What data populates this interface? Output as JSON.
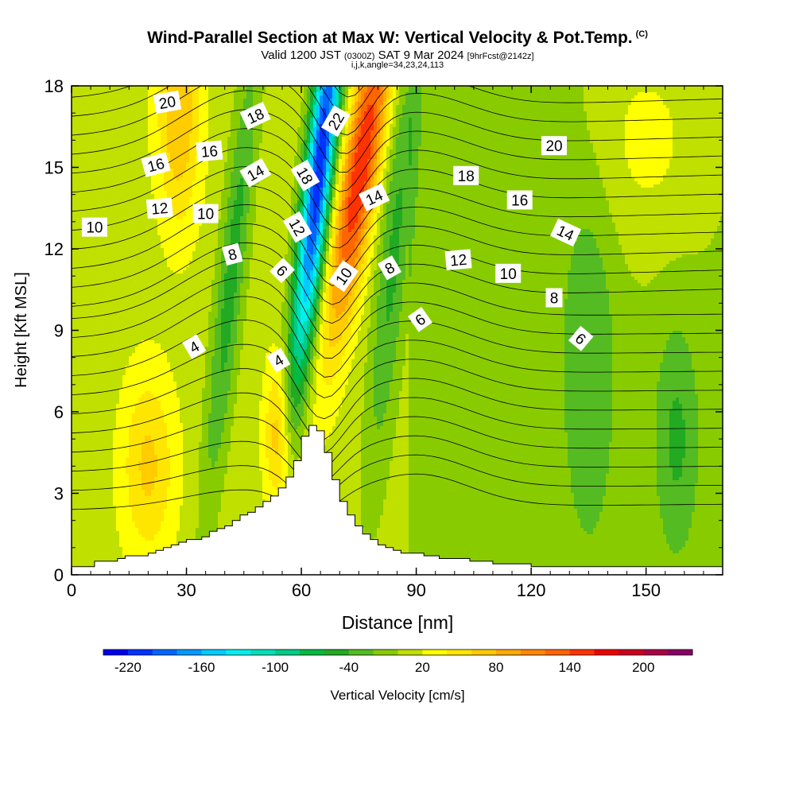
{
  "header": {
    "title": "Wind-Parallel Section at Max W: Vertical Velocity & Pot.Temp.",
    "copyright": "(C)",
    "valid_prefix": "Valid 1200 JST",
    "valid_utc": "(0300Z)",
    "valid_date": "SAT 9 Mar 2024",
    "forecast": "[9hrFcst@2142z]",
    "indices": "i,j,k,angle=34,23,24,113"
  },
  "chart_data": {
    "type": "contour",
    "xlabel": "Distance [nm]",
    "ylabel": "Height [Kft MSL]",
    "xlim": [
      0,
      170
    ],
    "ylim": [
      0,
      18
    ],
    "xticks": [
      0,
      30,
      60,
      90,
      120,
      150
    ],
    "yticks": [
      0,
      3,
      6,
      9,
      12,
      15,
      18
    ],
    "colorbar": {
      "label": "Vertical Velocity [cm/s]",
      "tick_labels": [
        -220,
        -160,
        -100,
        -40,
        20,
        80,
        140,
        200
      ],
      "levels": [
        -240,
        -220,
        -200,
        -180,
        -160,
        -140,
        -120,
        -100,
        -80,
        -60,
        -40,
        -20,
        0,
        20,
        40,
        60,
        80,
        100,
        120,
        140,
        160,
        180,
        200,
        220,
        240
      ],
      "colors": [
        "#0000ee",
        "#0033ff",
        "#0066ff",
        "#0099ff",
        "#00ccff",
        "#00f0ee",
        "#00e0bb",
        "#00cc88",
        "#00bb44",
        "#22aa22",
        "#55bb22",
        "#88cc00",
        "#c0e000",
        "#ffff00",
        "#ffe600",
        "#ffcc00",
        "#ffaa00",
        "#ff8800",
        "#ff6600",
        "#ff3300",
        "#ee0000",
        "#cc0022",
        "#aa0044",
        "#880066"
      ]
    },
    "terrain_profile": [
      [
        0,
        0.3
      ],
      [
        2,
        0.3
      ],
      [
        4,
        0.3
      ],
      [
        6,
        0.5
      ],
      [
        8,
        0.5
      ],
      [
        10,
        0.5
      ],
      [
        12,
        0.6
      ],
      [
        14,
        0.7
      ],
      [
        16,
        0.7
      ],
      [
        18,
        0.7
      ],
      [
        20,
        0.8
      ],
      [
        22,
        0.9
      ],
      [
        24,
        1.0
      ],
      [
        26,
        1.1
      ],
      [
        28,
        1.2
      ],
      [
        30,
        1.3
      ],
      [
        32,
        1.3
      ],
      [
        34,
        1.4
      ],
      [
        36,
        1.6
      ],
      [
        38,
        1.7
      ],
      [
        40,
        1.8
      ],
      [
        42,
        2.0
      ],
      [
        44,
        2.2
      ],
      [
        46,
        2.3
      ],
      [
        48,
        2.5
      ],
      [
        50,
        2.7
      ],
      [
        52,
        2.9
      ],
      [
        54,
        3.2
      ],
      [
        56,
        3.6
      ],
      [
        58,
        4.2
      ],
      [
        60,
        5.1
      ],
      [
        62,
        5.5
      ],
      [
        64,
        5.3
      ],
      [
        66,
        4.5
      ],
      [
        68,
        3.5
      ],
      [
        70,
        2.7
      ],
      [
        72,
        2.2
      ],
      [
        74,
        1.8
      ],
      [
        76,
        1.5
      ],
      [
        78,
        1.3
      ],
      [
        80,
        1.1
      ],
      [
        82,
        1.0
      ],
      [
        84,
        0.9
      ],
      [
        86,
        0.8
      ],
      [
        88,
        0.8
      ],
      [
        90,
        0.8
      ],
      [
        92,
        0.7
      ],
      [
        94,
        0.7
      ],
      [
        96,
        0.6
      ],
      [
        98,
        0.6
      ],
      [
        100,
        0.6
      ],
      [
        102,
        0.6
      ],
      [
        104,
        0.5
      ],
      [
        106,
        0.5
      ],
      [
        108,
        0.5
      ],
      [
        110,
        0.4
      ],
      [
        112,
        0.4
      ],
      [
        114,
        0.4
      ],
      [
        116,
        0.4
      ],
      [
        118,
        0.4
      ],
      [
        120,
        0.3
      ],
      [
        122,
        0.3
      ],
      [
        124,
        0.3
      ],
      [
        126,
        0.3
      ],
      [
        128,
        0.3
      ],
      [
        130,
        0.3
      ],
      [
        132,
        0.3
      ],
      [
        134,
        0.3
      ],
      [
        136,
        0.3
      ],
      [
        138,
        0.3
      ],
      [
        140,
        0.3
      ],
      [
        142,
        0.3
      ],
      [
        144,
        0.3
      ],
      [
        146,
        0.3
      ],
      [
        148,
        0.3
      ],
      [
        150,
        0.3
      ],
      [
        152,
        0.3
      ],
      [
        154,
        0.3
      ],
      [
        156,
        0.3
      ],
      [
        158,
        0.3
      ],
      [
        160,
        0.3
      ],
      [
        162,
        0.3
      ],
      [
        164,
        0.3
      ],
      [
        166,
        0.3
      ],
      [
        168,
        0.3
      ],
      [
        170,
        0.3
      ]
    ],
    "pot_temp_contour_labels": [
      {
        "text": "20",
        "x": 25,
        "y": 17.4,
        "angle": -10
      },
      {
        "text": "18",
        "x": 48,
        "y": 16.9,
        "angle": -25
      },
      {
        "text": "22",
        "x": 69,
        "y": 16.7,
        "angle": -60
      },
      {
        "text": "16",
        "x": 36,
        "y": 15.6,
        "angle": -5
      },
      {
        "text": "16",
        "x": 22,
        "y": 15.1,
        "angle": -15
      },
      {
        "text": "14",
        "x": 48,
        "y": 14.8,
        "angle": -30
      },
      {
        "text": "18",
        "x": 61,
        "y": 14.7,
        "angle": 60
      },
      {
        "text": "18",
        "x": 103,
        "y": 14.7,
        "angle": 0
      },
      {
        "text": "20",
        "x": 126,
        "y": 15.8,
        "angle": 0
      },
      {
        "text": "14",
        "x": 79,
        "y": 13.9,
        "angle": -25
      },
      {
        "text": "16",
        "x": 117,
        "y": 13.8,
        "angle": 0
      },
      {
        "text": "12",
        "x": 23,
        "y": 13.5,
        "angle": -5
      },
      {
        "text": "10",
        "x": 35,
        "y": 13.3,
        "angle": 0
      },
      {
        "text": "12",
        "x": 59,
        "y": 12.8,
        "angle": 60
      },
      {
        "text": "14",
        "x": 129,
        "y": 12.6,
        "angle": 25
      },
      {
        "text": "10",
        "x": 6,
        "y": 12.8,
        "angle": 0
      },
      {
        "text": "8",
        "x": 42,
        "y": 11.8,
        "angle": -15
      },
      {
        "text": "12",
        "x": 101,
        "y": 11.6,
        "angle": -5
      },
      {
        "text": "8",
        "x": 83,
        "y": 11.3,
        "angle": -30
      },
      {
        "text": "6",
        "x": 55,
        "y": 11.2,
        "angle": 45
      },
      {
        "text": "10",
        "x": 71,
        "y": 11.0,
        "angle": -55
      },
      {
        "text": "10",
        "x": 114,
        "y": 11.1,
        "angle": 0
      },
      {
        "text": "8",
        "x": 126,
        "y": 10.2,
        "angle": 0
      },
      {
        "text": "6",
        "x": 91,
        "y": 9.4,
        "angle": -35
      },
      {
        "text": "6",
        "x": 133,
        "y": 8.7,
        "angle": 40
      },
      {
        "text": "4",
        "x": 32,
        "y": 8.4,
        "angle": -30
      },
      {
        "text": "4",
        "x": 54,
        "y": 7.9,
        "angle": -30
      }
    ]
  }
}
